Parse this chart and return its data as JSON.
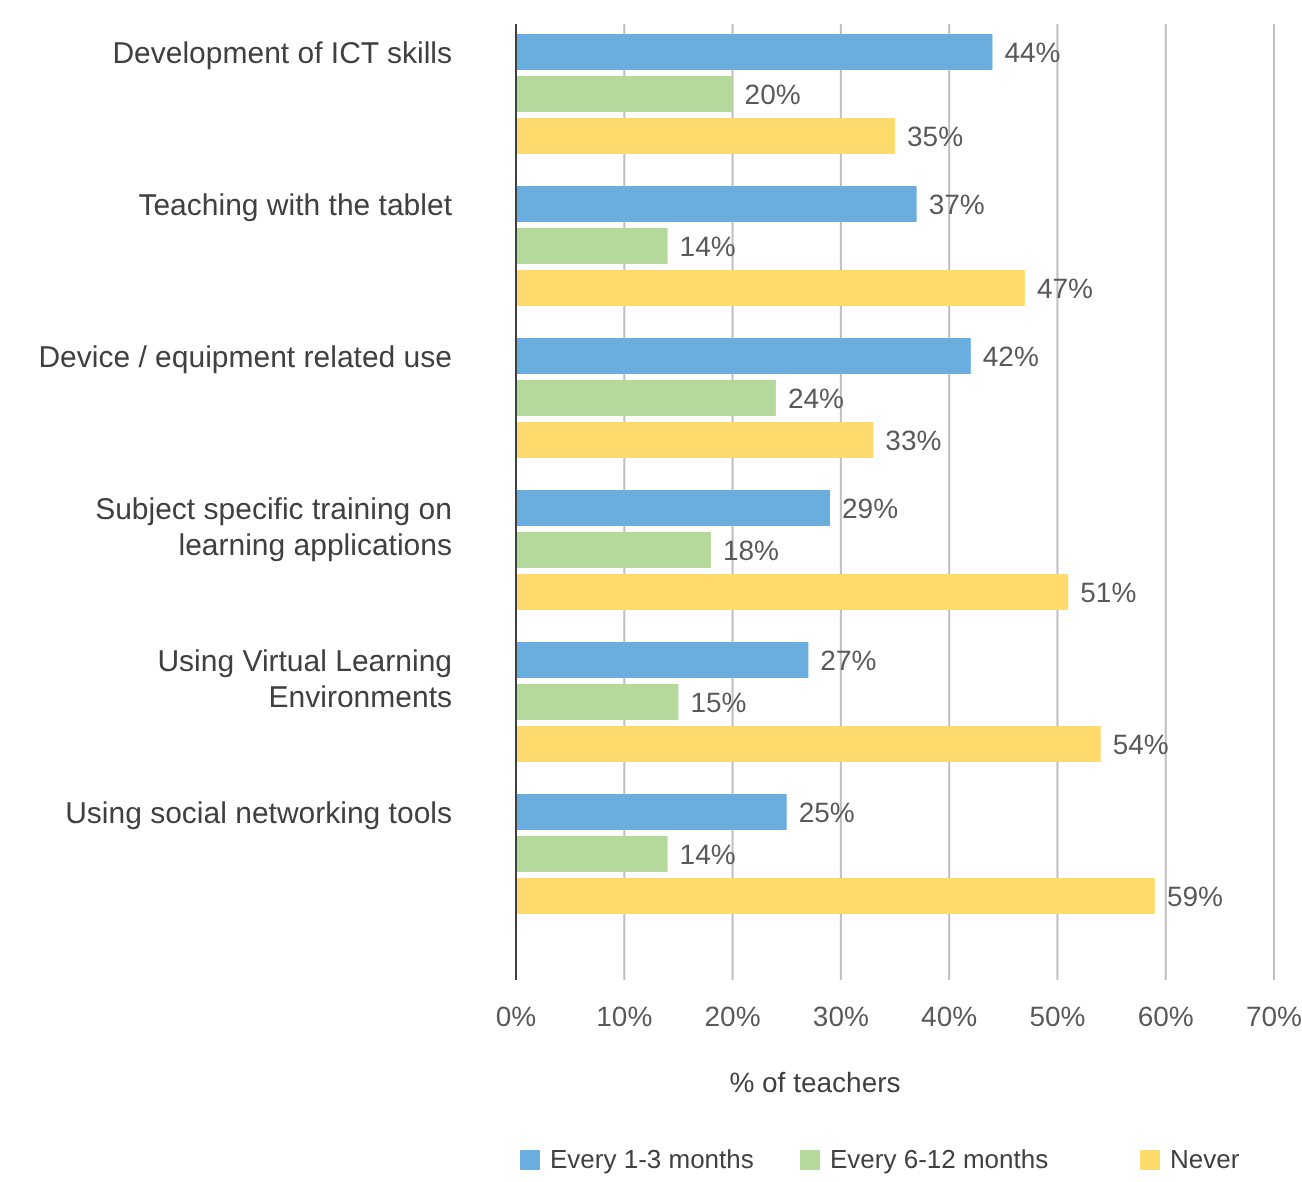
{
  "chart_data": {
    "type": "bar",
    "orientation": "horizontal",
    "xlabel": "% of teachers",
    "categories": [
      "Development of ICT skills",
      "Teaching with the tablet",
      "Device / equipment related use",
      "Subject specific training on learning applications",
      "Using Virtual Learning Environments",
      "Using social networking tools"
    ],
    "series": [
      {
        "name": "Every 1-3 months",
        "color": "#6aaee0",
        "values": [
          44,
          37,
          42,
          29,
          27,
          25
        ],
        "value_labels": [
          "44%",
          "37%",
          "42%",
          "29%",
          "27%",
          "25%"
        ]
      },
      {
        "name": "Every 6-12 months",
        "color": "#b5d99a",
        "values": [
          20,
          14,
          24,
          18,
          15,
          14
        ],
        "value_labels": [
          "20%",
          "14%",
          "24%",
          "18%",
          "15%",
          "14%"
        ]
      },
      {
        "name": "Never",
        "color": "#ffdb6e",
        "values": [
          35,
          47,
          33,
          51,
          54,
          59
        ],
        "value_labels": [
          "35%",
          "47%",
          "33%",
          "51%",
          "54%",
          "59%"
        ]
      }
    ],
    "xlim": [
      0,
      70
    ],
    "xticks": [
      {
        "value": 0,
        "label": "0%"
      },
      {
        "value": 10,
        "label": "10%"
      },
      {
        "value": 20,
        "label": "20%"
      },
      {
        "value": 30,
        "label": "30%"
      },
      {
        "value": 40,
        "label": "40%"
      },
      {
        "value": 50,
        "label": "50%"
      },
      {
        "value": 60,
        "label": "60%"
      },
      {
        "value": 70,
        "label": "70%"
      }
    ],
    "grid": "x",
    "legend": "bottom"
  }
}
